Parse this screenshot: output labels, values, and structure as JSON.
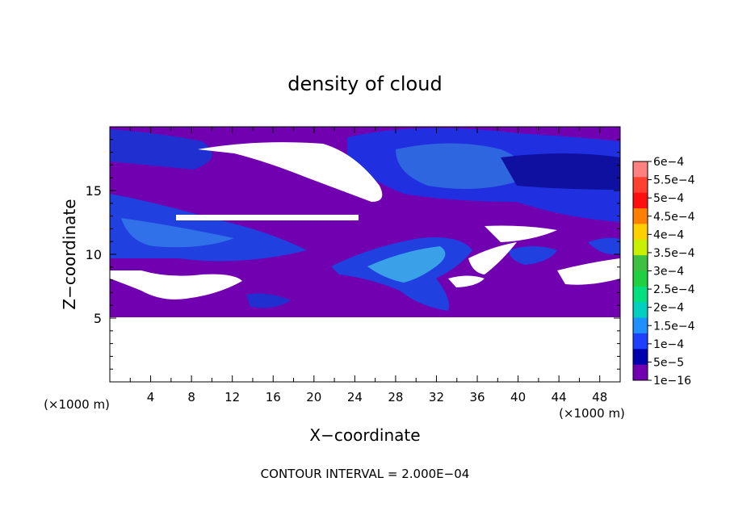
{
  "chart_data": {
    "type": "heatmap",
    "title": "density of cloud",
    "xlabel": "X−coordinate",
    "ylabel": "Z−coordinate",
    "x_unit": "(×1000 m)",
    "y_unit": "(×1000 m)",
    "xlim": [
      0,
      50
    ],
    "ylim": [
      0,
      20
    ],
    "x_ticks": [
      4,
      8,
      12,
      16,
      20,
      24,
      28,
      32,
      36,
      40,
      44,
      48
    ],
    "y_ticks": [
      5,
      10,
      15
    ],
    "footer": "CONTOUR INTERVAL = 2.000E−04",
    "colorbar": {
      "labels": [
        "6e−4",
        "5.5e−4",
        "5e−4",
        "4.5e−4",
        "4e−4",
        "3.5e−4",
        "3e−4",
        "2.5e−4",
        "2e−4",
        "1.5e−4",
        "1e−4",
        "5e−5",
        "1e−16"
      ],
      "colors": [
        "#ff8080",
        "#ff4030",
        "#ff1010",
        "#ff8000",
        "#ffd000",
        "#c8f000",
        "#40c040",
        "#20d040",
        "#00e080",
        "#00d0c0",
        "#1e90ff",
        "#2040ff",
        "#0000b0",
        "#7000b0"
      ]
    },
    "cloud_layer_z": [
      5,
      20
    ]
  }
}
